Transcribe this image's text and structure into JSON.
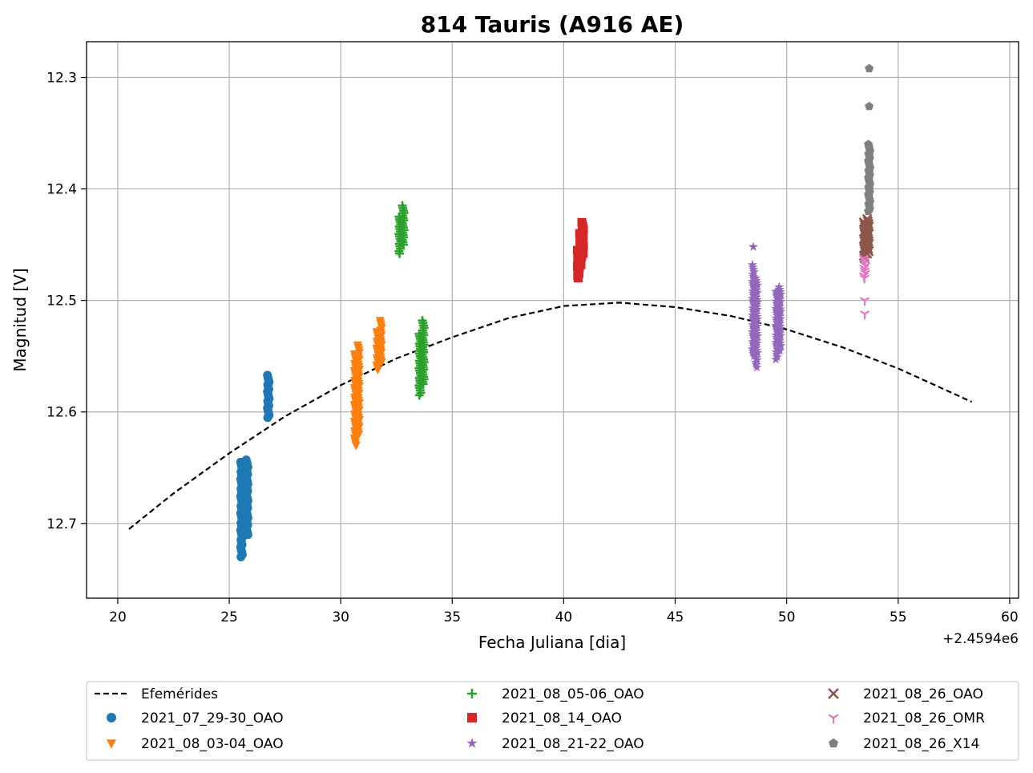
{
  "chart_data": {
    "type": "scatter",
    "title": "814 Tauris (A916 AE)",
    "xlabel": "Fecha Juliana [dia]",
    "ylabel": "Magnitud [V]",
    "x_offset_label": "+2.4594e6",
    "xlim": [
      18.6,
      60.4
    ],
    "ylim": [
      12.767,
      12.268
    ],
    "y_inverted": true,
    "xticks": [
      20,
      25,
      30,
      35,
      40,
      45,
      50,
      55,
      60
    ],
    "yticks": [
      12.3,
      12.4,
      12.5,
      12.6,
      12.7
    ],
    "ytick_labels": [
      "12.3",
      "12.4",
      "12.5",
      "12.6",
      "12.7"
    ],
    "grid": true,
    "legend_position": "below",
    "legend_columns": 3,
    "ephemeris": {
      "name": "Efemérides",
      "style": "dashed",
      "color": "#000000",
      "x": [
        20.5,
        22.5,
        25,
        27.5,
        30,
        32.5,
        35,
        37.5,
        40,
        42.5,
        45,
        47.5,
        50,
        52.5,
        55,
        58.3
      ],
      "y": [
        12.705,
        12.673,
        12.637,
        12.604,
        12.576,
        12.552,
        12.533,
        12.516,
        12.505,
        12.502,
        12.506,
        12.514,
        12.526,
        12.542,
        12.561,
        12.591
      ]
    },
    "series": [
      {
        "name": "2021_07_29-30_OAO",
        "color": "#1f77b4",
        "marker": "circle",
        "groups": [
          {
            "x": 25.55,
            "y_min": 12.645,
            "y_max": 12.73
          },
          {
            "x": 25.8,
            "y_min": 12.643,
            "y_max": 12.71
          },
          {
            "x": 26.75,
            "y_min": 12.567,
            "y_max": 12.605
          }
        ]
      },
      {
        "name": "2021_08_03-04_OAO",
        "color": "#ff7f0e",
        "marker": "triangle-down",
        "groups": [
          {
            "x": 30.65,
            "y_min": 12.548,
            "y_max": 12.63
          },
          {
            "x": 30.8,
            "y_min": 12.54,
            "y_max": 12.62
          },
          {
            "x": 31.65,
            "y_min": 12.528,
            "y_max": 12.562
          },
          {
            "x": 31.8,
            "y_min": 12.518,
            "y_max": 12.555
          }
        ]
      },
      {
        "name": "2021_08_05-06_OAO",
        "color": "#2ca02c",
        "marker": "plus",
        "groups": [
          {
            "x": 32.65,
            "y_min": 12.425,
            "y_max": 12.458
          },
          {
            "x": 32.8,
            "y_min": 12.415,
            "y_max": 12.45
          },
          {
            "x": 33.55,
            "y_min": 12.53,
            "y_max": 12.585
          },
          {
            "x": 33.7,
            "y_min": 12.518,
            "y_max": 12.575
          }
        ]
      },
      {
        "name": "2021_08_14_OAO",
        "color": "#d62728",
        "marker": "square",
        "groups": [
          {
            "x": 40.65,
            "y_min": 12.455,
            "y_max": 12.48
          },
          {
            "x": 40.75,
            "y_min": 12.44,
            "y_max": 12.47
          },
          {
            "x": 40.85,
            "y_min": 12.43,
            "y_max": 12.46
          }
        ]
      },
      {
        "name": "2021_08_21-22_OAO",
        "color": "#9467bd",
        "marker": "star",
        "groups": [
          {
            "x": 48.5,
            "y_min": 12.468,
            "y_max": 12.55
          },
          {
            "x": 48.65,
            "y_min": 12.48,
            "y_max": 12.56
          },
          {
            "x": 49.55,
            "y_min": 12.492,
            "y_max": 12.553
          },
          {
            "x": 49.7,
            "y_min": 12.488,
            "y_max": 12.545
          }
        ],
        "extra": [
          {
            "x": 48.5,
            "y": 12.452
          }
        ]
      },
      {
        "name": "2021_08_26_OAO",
        "color": "#8c564b",
        "marker": "x",
        "groups": [
          {
            "x": 53.5,
            "y_min": 12.43,
            "y_max": 12.462
          },
          {
            "x": 53.65,
            "y_min": 12.427,
            "y_max": 12.458
          }
        ]
      },
      {
        "name": "2021_08_26_OMR",
        "color": "#e377c2",
        "marker": "tri-down",
        "groups": [
          {
            "x": 53.5,
            "y_min": 12.462,
            "y_max": 12.48
          }
        ],
        "extra": [
          {
            "x": 53.5,
            "y": 12.5
          },
          {
            "x": 53.5,
            "y": 12.512
          }
        ]
      },
      {
        "name": "2021_08_26_X14",
        "color": "#7f7f7f",
        "marker": "pentagon",
        "groups": [
          {
            "x": 53.7,
            "y_min": 12.36,
            "y_max": 12.42
          }
        ],
        "extra": [
          {
            "x": 53.7,
            "y": 12.292
          },
          {
            "x": 53.7,
            "y": 12.326
          }
        ]
      }
    ]
  }
}
